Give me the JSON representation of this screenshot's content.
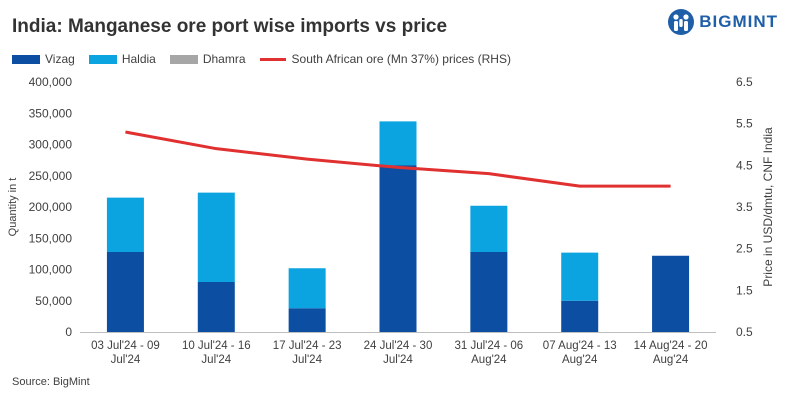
{
  "title": "India: Manganese ore port wise imports vs price",
  "brand": {
    "name": "BIGMINT"
  },
  "source": "Source: BigMint",
  "colors": {
    "vizag": "#0b4ea2",
    "haldia": "#0ba4e0",
    "dhamra": "#a6a6a6",
    "price": "#e03030"
  },
  "chart_data": {
    "type": "bar",
    "stacked": true,
    "categories": [
      [
        "03 Jul'24 - 09",
        "Jul'24"
      ],
      [
        "10 Jul'24 - 16",
        "Jul'24"
      ],
      [
        "17 Jul'24 - 23",
        "Jul'24"
      ],
      [
        "24 Jul'24 - 30",
        "Jul'24"
      ],
      [
        "31 Jul'24 - 06",
        "Aug'24"
      ],
      [
        "07 Aug'24 - 13",
        "Aug'24"
      ],
      [
        "14 Aug'24 - 20",
        "Aug'24"
      ]
    ],
    "series": [
      {
        "name": "Vizag",
        "kind": "bar",
        "values": [
          128000,
          80000,
          38000,
          267000,
          128000,
          50000,
          122000
        ]
      },
      {
        "name": "Haldia",
        "kind": "bar",
        "values": [
          87000,
          143000,
          64000,
          70000,
          74000,
          77000,
          0
        ]
      },
      {
        "name": "Dhamra",
        "kind": "bar",
        "values": [
          0,
          0,
          0,
          0,
          0,
          0,
          0
        ]
      },
      {
        "name": "South African ore (Mn 37%) prices (RHS)",
        "kind": "line",
        "axis": "right",
        "values": [
          5.3,
          4.9,
          4.65,
          4.45,
          4.3,
          4.0,
          4.0
        ]
      }
    ],
    "ylabel": "Quantity in t",
    "y2label": "Price in USD/dmtu, CNF India",
    "ylim": [
      0,
      400000
    ],
    "y2lim": [
      0.5,
      6.5
    ],
    "yticks": [
      "0",
      "50,000",
      "100,000",
      "150,000",
      "200,000",
      "250,000",
      "300,000",
      "350,000",
      "400,000"
    ],
    "y2ticks": [
      "0.5",
      "1.5",
      "2.5",
      "3.5",
      "4.5",
      "5.5",
      "6.5"
    ],
    "legend_position": "top-left",
    "grid": false
  }
}
